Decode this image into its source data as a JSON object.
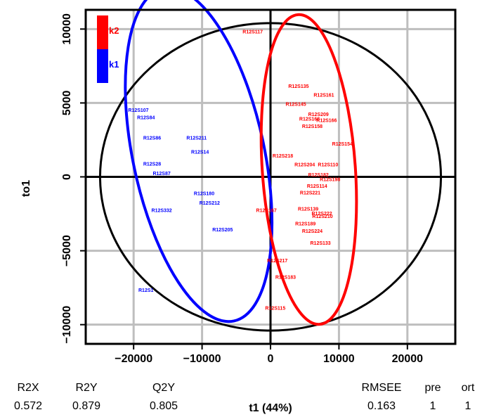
{
  "chart_data": {
    "type": "scatter",
    "xlabel": "t1 (44%)",
    "ylabel": "to1",
    "xlim": [
      -27000,
      27000
    ],
    "ylim": [
      -11300,
      11300
    ],
    "xticks": [
      -20000,
      -10000,
      0,
      10000,
      20000
    ],
    "yticks": [
      -10000,
      -5000,
      0,
      5000,
      10000
    ],
    "grid": true,
    "legend": {
      "position": "top-left",
      "entries": [
        {
          "name": "k2",
          "color": "#ff0000"
        },
        {
          "name": "k1",
          "color": "#0000ff"
        }
      ]
    },
    "series": [
      {
        "name": "k1",
        "color": "#0000ff",
        "points": [
          {
            "label": "R12S107",
            "x": -19300,
            "y": 4500
          },
          {
            "label": "R12S84",
            "x": -18200,
            "y": 4000
          },
          {
            "label": "R12S86",
            "x": -17300,
            "y": 2600
          },
          {
            "label": "R12S211",
            "x": -10800,
            "y": 2600
          },
          {
            "label": "R12S14",
            "x": -10300,
            "y": 1650
          },
          {
            "label": "R12S28",
            "x": -17300,
            "y": 850
          },
          {
            "label": "R12S87",
            "x": -15900,
            "y": 200
          },
          {
            "label": "R12S180",
            "x": -9700,
            "y": -1150
          },
          {
            "label": "R12S212",
            "x": -8900,
            "y": -1800
          },
          {
            "label": "R12S332",
            "x": -15900,
            "y": -2300
          },
          {
            "label": "R12S205",
            "x": -7000,
            "y": -3600
          },
          {
            "label": "R12S1",
            "x": -18200,
            "y": -7700
          }
        ],
        "ellipse": {
          "cx": -10500,
          "cy": 1500,
          "rx": 9600,
          "ry": 11500,
          "angle_deg": -12
        }
      },
      {
        "name": "k2",
        "color": "#ff0000",
        "points": [
          {
            "label": "R12S117",
            "x": -2600,
            "y": 9800
          },
          {
            "label": "R12S135",
            "x": 4100,
            "y": 6100
          },
          {
            "label": "R12S161",
            "x": 7800,
            "y": 5500
          },
          {
            "label": "R12S145",
            "x": 3700,
            "y": 4900
          },
          {
            "label": "R12S209",
            "x": 7000,
            "y": 4200
          },
          {
            "label": "R12S168",
            "x": 5700,
            "y": 3900
          },
          {
            "label": "R12S166",
            "x": 8200,
            "y": 3800
          },
          {
            "label": "R12S158",
            "x": 6100,
            "y": 3400
          },
          {
            "label": "R12S154",
            "x": 10500,
            "y": 2200
          },
          {
            "label": "R12S218",
            "x": 1800,
            "y": 1400
          },
          {
            "label": "R12S204",
            "x": 5000,
            "y": 800
          },
          {
            "label": "R12S110",
            "x": 8400,
            "y": 800
          },
          {
            "label": "R12S182",
            "x": 7000,
            "y": 100
          },
          {
            "label": "R12S198",
            "x": 8700,
            "y": -200
          },
          {
            "label": "R12S114",
            "x": 6800,
            "y": -650
          },
          {
            "label": "R12S221",
            "x": 5800,
            "y": -1100
          },
          {
            "label": "R12S167",
            "x": -600,
            "y": -2300
          },
          {
            "label": "R12S139",
            "x": 5500,
            "y": -2200
          },
          {
            "label": "R12S222",
            "x": 7500,
            "y": -2500
          },
          {
            "label": "R12S210",
            "x": 7600,
            "y": -2700
          },
          {
            "label": "R12S189",
            "x": 5100,
            "y": -3200
          },
          {
            "label": "R12S224",
            "x": 6100,
            "y": -3700
          },
          {
            "label": "R12S133",
            "x": 7300,
            "y": -4500
          },
          {
            "label": "R12S217",
            "x": 1000,
            "y": -5700
          },
          {
            "label": "R12S183",
            "x": 2200,
            "y": -6800
          },
          {
            "label": "R12S115",
            "x": 700,
            "y": -8900
          }
        ],
        "ellipse": {
          "cx": 5600,
          "cy": 500,
          "rx": 6800,
          "ry": 10500,
          "angle_deg": -4
        }
      }
    ],
    "reference_circle": {
      "cx": 0,
      "cy": 0,
      "rx": 24900,
      "ry": 10400
    }
  },
  "stats": {
    "headers": [
      "R2X",
      "R2Y",
      "Q2Y",
      "RMSEE",
      "pre",
      "ort"
    ],
    "values": [
      "0.572",
      "0.879",
      "0.805",
      "0.163",
      "1",
      "1"
    ]
  }
}
